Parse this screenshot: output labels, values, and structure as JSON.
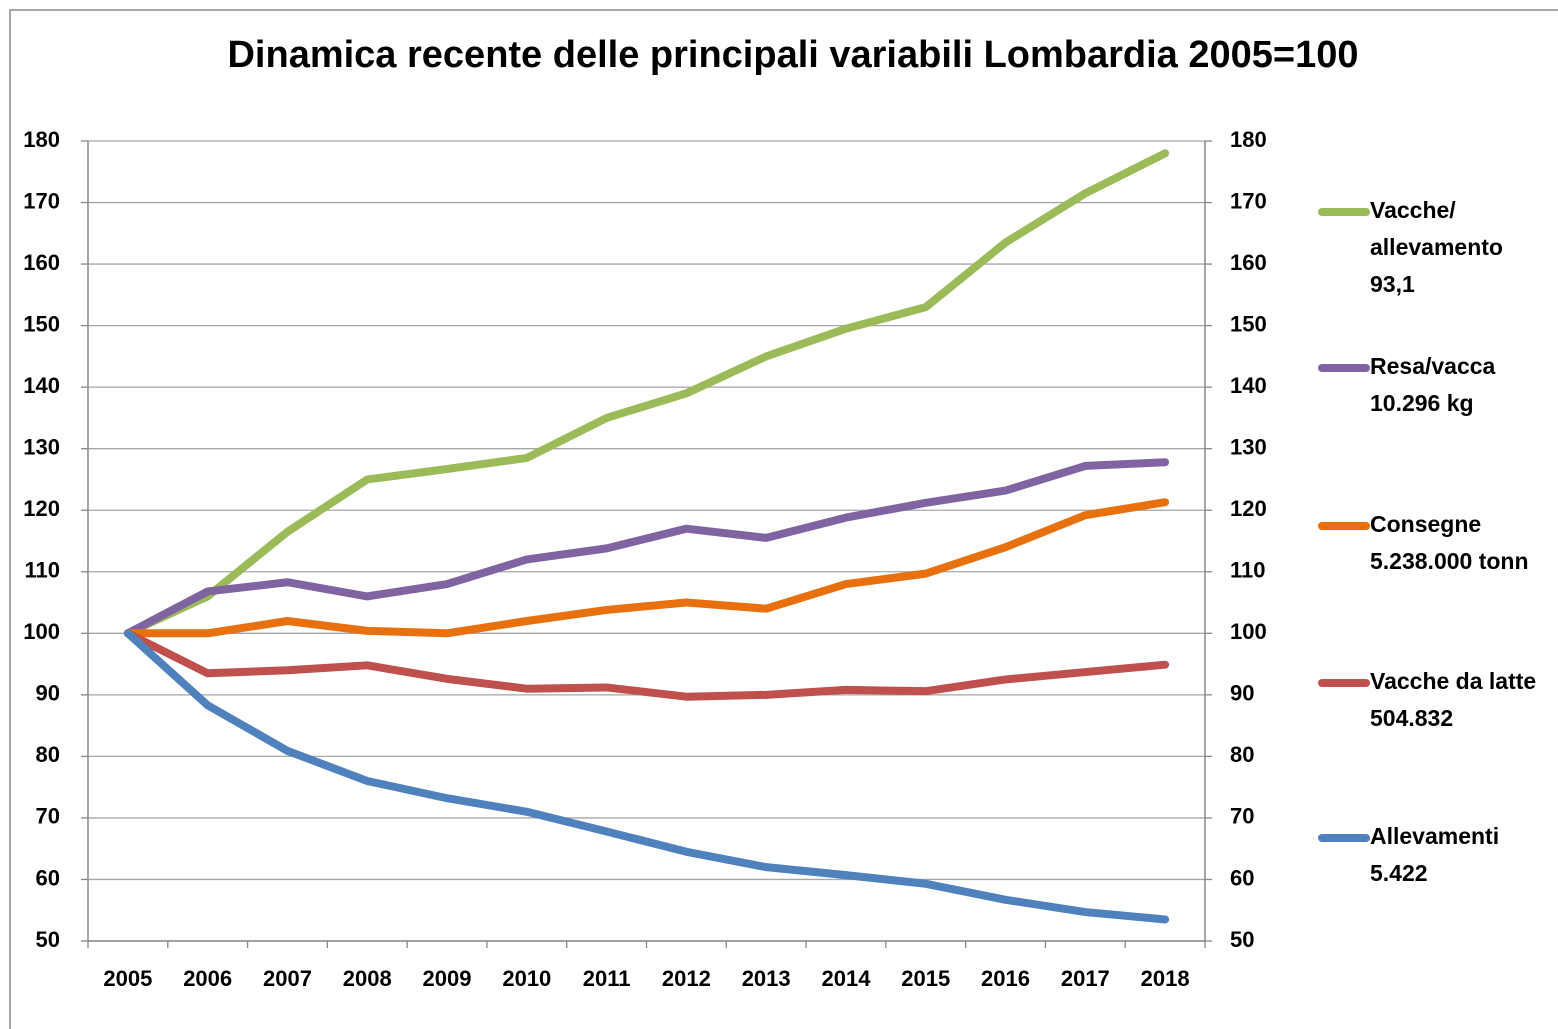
{
  "chart_data": {
    "type": "line",
    "title": "Dinamica recente delle principali variabili Lombardia 2005=100",
    "categories": [
      "2005",
      "2006",
      "2007",
      "2008",
      "2009",
      "2010",
      "2011",
      "2012",
      "2013",
      "2014",
      "2015",
      "2016",
      "2017",
      "2018"
    ],
    "series": [
      {
        "name": "Vacche/\nallevamento\n93,1",
        "color": "#9bbb59",
        "values": [
          100,
          106,
          116.5,
          125,
          126.7,
          128.5,
          135,
          139,
          145,
          149.5,
          153,
          163.5,
          171.5,
          178
        ]
      },
      {
        "name": "Resa/vacca\n10.296 kg",
        "color": "#8064a2",
        "values": [
          100,
          106.8,
          108.3,
          106,
          108,
          112,
          113.8,
          117,
          115.5,
          118.8,
          121.2,
          123.2,
          127.2,
          127.8
        ]
      },
      {
        "name": "Consegne\n5.238.000 tonn",
        "color": "#e8700f",
        "values": [
          100,
          100,
          102,
          100.4,
          100,
          102,
          103.8,
          105,
          104,
          108,
          109.7,
          114,
          119.2,
          121.3
        ]
      },
      {
        "name": "Vacche da latte\n504.832",
        "color": "#c0504d",
        "values": [
          100,
          93.5,
          94,
          94.8,
          92.6,
          91,
          91.2,
          89.7,
          90,
          90.8,
          90.6,
          92.5,
          93.7,
          94.9
        ]
      },
      {
        "name": "Allevamenti\n5.422",
        "color": "#4f81bd",
        "values": [
          100,
          88.3,
          80.9,
          76,
          73.2,
          71,
          67.8,
          64.5,
          62,
          60.7,
          59.3,
          56.7,
          54.7,
          53.5
        ]
      }
    ],
    "ylim": [
      50,
      180
    ],
    "yticks": [
      50,
      60,
      70,
      80,
      90,
      100,
      110,
      120,
      130,
      140,
      150,
      160,
      170,
      180
    ],
    "y2lim": [
      50,
      180
    ],
    "y2ticks": [
      50,
      60,
      70,
      80,
      90,
      100,
      110,
      120,
      130,
      140,
      150,
      160,
      170,
      180
    ],
    "grid": true,
    "legend": "right"
  }
}
